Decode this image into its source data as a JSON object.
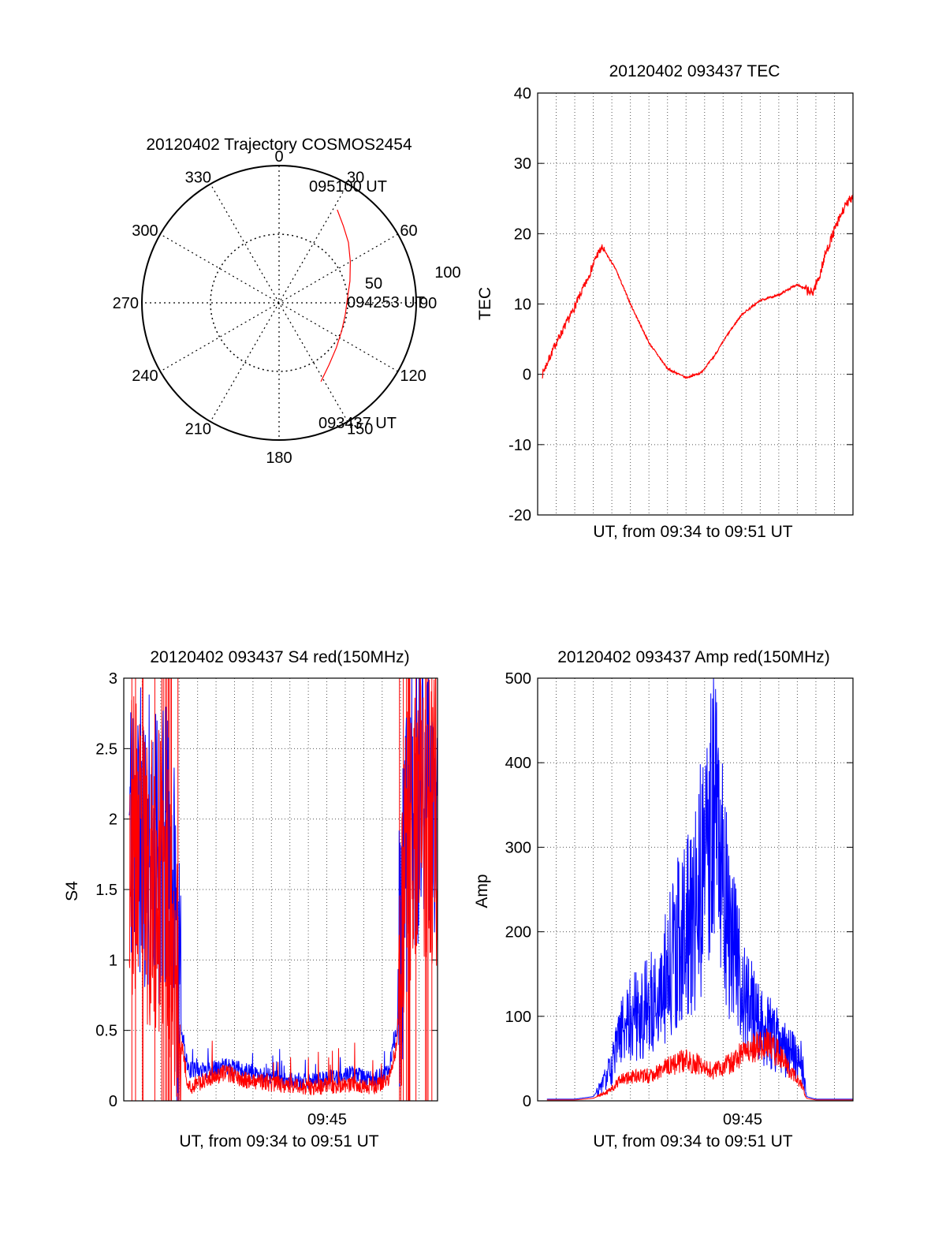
{
  "figure": {
    "background": "#ffffff",
    "series_colors": {
      "red": "#ff0000",
      "blue": "#0000ff"
    }
  },
  "chart_data": [
    {
      "id": "trajectory",
      "type": "polar",
      "title": "20120402 Trajectory COSMOS2454",
      "angle_labels": [
        "0",
        "30",
        "60",
        "90",
        "120",
        "150",
        "180",
        "210",
        "240",
        "270",
        "300",
        "330"
      ],
      "radial_labels": [
        "50",
        "100"
      ],
      "rlim": [
        0,
        100
      ],
      "grid": true,
      "annotations": {
        "start": "093437 UT",
        "mid": "094253 UT",
        "end": "095100 UT"
      },
      "trajectory": {
        "color": "#ff0000",
        "points": [
          {
            "az": 152,
            "r": 65
          },
          {
            "az": 141,
            "r": 58
          },
          {
            "az": 128,
            "r": 53
          },
          {
            "az": 114,
            "r": 50
          },
          {
            "az": 100,
            "r": 49
          },
          {
            "az": 86,
            "r": 50
          },
          {
            "az": 73,
            "r": 54
          },
          {
            "az": 60,
            "r": 60
          },
          {
            "az": 49,
            "r": 67
          },
          {
            "az": 40,
            "r": 73
          },
          {
            "az": 32,
            "r": 80
          }
        ]
      }
    },
    {
      "id": "tec",
      "type": "line",
      "title": "20120402 093437 TEC",
      "xlabel": "UT, from 09:34 to 09:51 UT",
      "ylabel": "TEC",
      "xlim": [
        0,
        17
      ],
      "ylim": [
        -20,
        40
      ],
      "yticks": [
        "-20",
        "-10",
        "0",
        "10",
        "20",
        "30",
        "40"
      ],
      "grid": true,
      "series": [
        {
          "color": "#ff0000",
          "x": [
            0.25,
            1.0,
            1.8,
            2.6,
            3.2,
            3.5,
            4.2,
            5.0,
            6.0,
            7.0,
            8.0,
            8.8,
            9.5,
            10.2,
            11.0,
            12.0,
            13.0,
            14.0,
            14.8,
            15.2,
            15.5,
            16.0,
            16.5,
            17.0
          ],
          "y": [
            0,
            4.5,
            8.5,
            13,
            17,
            18,
            15,
            10,
            4.5,
            0.8,
            -0.5,
            0.2,
            2.5,
            5.5,
            8.5,
            10.5,
            11.3,
            12.8,
            11.5,
            14,
            17,
            20.5,
            23.5,
            25.5
          ]
        }
      ]
    },
    {
      "id": "s4",
      "type": "line",
      "title": "20120402 093437 S4 red(150MHz)",
      "xlabel": "UT, from 09:34 to 09:51 UT",
      "ylabel": "S4",
      "xlim": [
        0,
        17
      ],
      "ylim": [
        0,
        3
      ],
      "yticks": [
        "0",
        "0.5",
        "1",
        "1.5",
        "2",
        "2.5",
        "3"
      ],
      "xtick_label": "09:45",
      "grid": true,
      "series": [
        {
          "color": "#0000ff",
          "x": [
            0.3,
            0.8,
            1.5,
            2.2,
            2.7,
            3.0,
            3.5,
            4.5,
            5.5,
            6.5,
            8.0,
            9.5,
            10.5,
            11.5,
            12.5,
            13.5,
            14.3,
            14.8,
            15.2,
            15.6,
            16.2,
            17.0
          ],
          "y": [
            2.0,
            1.9,
            1.8,
            1.75,
            1.5,
            0.6,
            0.22,
            0.22,
            0.25,
            0.22,
            0.17,
            0.13,
            0.15,
            0.17,
            0.19,
            0.15,
            0.2,
            0.5,
            1.6,
            2.1,
            2.2,
            2.1
          ]
        },
        {
          "color": "#ff0000",
          "x": [
            0.3,
            0.8,
            1.5,
            2.2,
            2.7,
            3.0,
            3.5,
            4.5,
            5.5,
            6.5,
            8.0,
            9.5,
            10.5,
            11.5,
            12.5,
            13.5,
            14.3,
            14.8,
            15.2,
            15.6,
            16.2,
            17.0
          ],
          "y": [
            1.9,
            1.7,
            1.6,
            1.5,
            1.3,
            0.5,
            0.1,
            0.15,
            0.2,
            0.15,
            0.12,
            0.1,
            0.1,
            0.11,
            0.12,
            0.1,
            0.15,
            0.4,
            1.5,
            2.0,
            2.1,
            2.0
          ]
        }
      ]
    },
    {
      "id": "amp",
      "type": "line",
      "title": "20120402 093437 Amp red(150MHz)",
      "xlabel": "UT, from 09:34 to 09:51 UT",
      "ylabel": "Amp",
      "xlim": [
        0,
        17
      ],
      "ylim": [
        0,
        500
      ],
      "yticks": [
        "0",
        "100",
        "200",
        "300",
        "400",
        "500"
      ],
      "xtick_label": "09:45",
      "grid": true,
      "series": [
        {
          "color": "#0000ff",
          "x": [
            0.5,
            2.0,
            3.0,
            3.5,
            4.0,
            4.5,
            5.0,
            6.0,
            7.0,
            7.5,
            8.0,
            8.5,
            9.0,
            9.5,
            10.0,
            10.5,
            11.0,
            11.5,
            12.0,
            12.5,
            13.0,
            13.5,
            14.2,
            14.5,
            15.0,
            16.0,
            17.0
          ],
          "y": [
            2,
            2,
            5,
            20,
            40,
            80,
            100,
            110,
            150,
            190,
            200,
            230,
            300,
            350,
            280,
            180,
            140,
            110,
            90,
            80,
            70,
            55,
            50,
            5,
            2,
            2,
            2
          ]
        },
        {
          "color": "#ff0000",
          "x": [
            0.5,
            2.0,
            3.0,
            3.5,
            4.0,
            4.5,
            5.0,
            6.0,
            7.0,
            7.5,
            8.0,
            8.5,
            9.0,
            9.5,
            10.0,
            10.5,
            11.0,
            11.5,
            12.0,
            12.5,
            13.0,
            13.5,
            14.2,
            14.5,
            15.0,
            16.0,
            17.0
          ],
          "y": [
            1,
            1,
            3,
            8,
            15,
            25,
            28,
            30,
            40,
            45,
            48,
            45,
            38,
            35,
            40,
            45,
            55,
            60,
            68,
            65,
            55,
            40,
            20,
            3,
            1,
            1,
            1
          ]
        }
      ]
    }
  ]
}
